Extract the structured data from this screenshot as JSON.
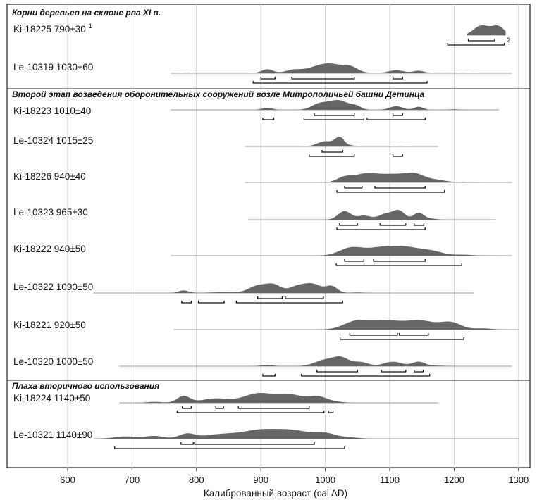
{
  "chart_data": {
    "type": "area",
    "title": "",
    "xlabel": "Калиброванный возраст (cal AD)",
    "ylabel": "",
    "xlim": [
      505,
      1305
    ],
    "xticks": [
      600,
      700,
      800,
      900,
      1000,
      1100,
      1200,
      1300
    ],
    "grid": true,
    "sections": [
      {
        "title": "Корни деревьев на склоне рва XI в.",
        "row": 0
      },
      {
        "title": "Второй этап возведения оборонительных сооружений возле Митрополичьей башни Детинца",
        "row": 2
      },
      {
        "title": "Плаха вторичного использования",
        "row": 10
      }
    ],
    "samples": [
      {
        "label": "Ki-18225 790±30",
        "note": "1",
        "note2": "2",
        "range": [
          1220,
          1280
        ],
        "peaks": [
          [
            1238,
            0.75,
            10
          ],
          [
            1255,
            1.0,
            15
          ],
          [
            1270,
            0.7,
            8
          ]
        ],
        "sigma1": [
          [
            1222,
            1263
          ]
        ],
        "sigma2": [
          [
            1190,
            1278
          ]
        ]
      },
      {
        "label": "Le-10319 1030±60",
        "range": [
          760,
          1290
        ],
        "peaks": [
          [
            785,
            0.06,
            6
          ],
          [
            910,
            0.4,
            9
          ],
          [
            950,
            0.28,
            12
          ],
          [
            1005,
            1.0,
            26
          ],
          [
            1040,
            0.35,
            10
          ],
          [
            1110,
            0.3,
            12
          ],
          [
            1145,
            0.25,
            9
          ],
          [
            1215,
            0.05,
            10
          ]
        ],
        "sigma1": [
          [
            900,
            922
          ],
          [
            948,
            1045
          ],
          [
            1105,
            1120
          ]
        ],
        "sigma2": [
          [
            888,
            1158
          ]
        ]
      },
      {
        "label": "Ki-18223 1010±40",
        "range": [
          760,
          1270
        ],
        "peaks": [
          [
            910,
            0.22,
            8
          ],
          [
            990,
            0.55,
            12
          ],
          [
            1020,
            1.0,
            16
          ],
          [
            1048,
            0.3,
            8
          ],
          [
            1110,
            0.38,
            10
          ],
          [
            1145,
            0.32,
            7
          ],
          [
            1200,
            0.05,
            10
          ]
        ],
        "sigma1": [
          [
            983,
            1045
          ],
          [
            1105,
            1120
          ]
        ],
        "sigma2": [
          [
            903,
            920
          ],
          [
            967,
            1060
          ],
          [
            1065,
            1155
          ]
        ]
      },
      {
        "label": "Le-10324 1015±25",
        "range": [
          875,
          1175
        ],
        "peaks": [
          [
            1000,
            0.75,
            12
          ],
          [
            1018,
            0.6,
            6
          ],
          [
            1025,
            0.9,
            6
          ],
          [
            1040,
            0.15,
            6
          ],
          [
            1115,
            0.06,
            8
          ]
        ],
        "sigma1": [
          [
            995,
            1027
          ]
        ],
        "sigma2": [
          [
            975,
            1045
          ],
          [
            1105,
            1120
          ]
        ]
      },
      {
        "label": "Ki-18226 940±40",
        "range": [
          875,
          1290
        ],
        "peaks": [
          [
            1030,
            0.6,
            12
          ],
          [
            1060,
            0.75,
            16
          ],
          [
            1100,
            0.95,
            26
          ],
          [
            1140,
            0.8,
            16
          ],
          [
            1175,
            0.25,
            14
          ],
          [
            1215,
            0.05,
            12
          ]
        ],
        "sigma1": [
          [
            1030,
            1057
          ],
          [
            1077,
            1155
          ]
        ],
        "sigma2": [
          [
            1018,
            1185
          ]
        ]
      },
      {
        "label": "Le-10323 965±30",
        "range": [
          880,
          1265
        ],
        "peaks": [
          [
            1030,
            0.85,
            10
          ],
          [
            1060,
            0.4,
            10
          ],
          [
            1095,
            0.6,
            12
          ],
          [
            1115,
            0.8,
            9
          ],
          [
            1145,
            0.7,
            8
          ],
          [
            1165,
            0.1,
            8
          ]
        ],
        "sigma1": [
          [
            1022,
            1050
          ],
          [
            1085,
            1125
          ],
          [
            1138,
            1153
          ]
        ],
        "sigma2": [
          [
            1018,
            1155
          ]
        ]
      },
      {
        "label": "Ki-18222 940±50",
        "range": [
          760,
          1290
        ],
        "peaks": [
          [
            1040,
            0.85,
            18
          ],
          [
            1085,
            0.8,
            22
          ],
          [
            1125,
            0.85,
            22
          ],
          [
            1165,
            0.45,
            18
          ],
          [
            1215,
            0.1,
            14
          ],
          [
            1250,
            0.02,
            10
          ]
        ],
        "sigma1": [
          [
            1030,
            1060
          ],
          [
            1075,
            1155
          ]
        ],
        "sigma2": [
          [
            1017,
            1212
          ]
        ]
      },
      {
        "label": "Le-10322 1090±50",
        "range": [
          640,
          1230
        ],
        "peaks": [
          [
            780,
            0.2,
            8
          ],
          [
            840,
            0.06,
            20
          ],
          [
            895,
            0.55,
            14
          ],
          [
            920,
            0.6,
            12
          ],
          [
            955,
            0.45,
            12
          ],
          [
            980,
            0.7,
            14
          ],
          [
            1010,
            0.5,
            9
          ],
          [
            1050,
            0.04,
            10
          ]
        ],
        "sigma1": [
          [
            895,
            933
          ],
          [
            938,
            997
          ]
        ],
        "sigma2": [
          [
            777,
            792
          ],
          [
            803,
            843
          ],
          [
            862,
            1027
          ]
        ]
      },
      {
        "label": "Ki-18221 920±50",
        "range": [
          765,
          1300
        ],
        "peaks": [
          [
            1045,
            0.6,
            18
          ],
          [
            1090,
            0.95,
            30
          ],
          [
            1150,
            0.8,
            22
          ],
          [
            1195,
            0.7,
            16
          ],
          [
            1245,
            0.12,
            14
          ]
        ],
        "sigma1": [
          [
            1038,
            1112
          ],
          [
            1115,
            1160
          ]
        ],
        "sigma2": [
          [
            1023,
            1215
          ]
        ]
      },
      {
        "label": "Le-10320 1000±50",
        "range": [
          680,
          1290
        ],
        "peaks": [
          [
            910,
            0.15,
            9
          ],
          [
            1000,
            0.7,
            16
          ],
          [
            1025,
            0.85,
            12
          ],
          [
            1055,
            0.45,
            12
          ],
          [
            1105,
            0.5,
            14
          ],
          [
            1145,
            0.5,
            10
          ],
          [
            1175,
            0.06,
            12
          ]
        ],
        "sigma1": [
          [
            987,
            1050
          ],
          [
            1087,
            1125
          ],
          [
            1138,
            1152
          ]
        ],
        "sigma2": [
          [
            903,
            922
          ],
          [
            963,
            1162
          ]
        ]
      },
      {
        "label": "Ki-18224 1140±50",
        "range": [
          680,
          1175
        ],
        "peaks": [
          [
            735,
            0.1,
            12
          ],
          [
            780,
            0.7,
            10
          ],
          [
            830,
            0.45,
            22
          ],
          [
            895,
            0.95,
            22
          ],
          [
            945,
            0.85,
            22
          ],
          [
            990,
            0.6,
            14
          ],
          [
            1020,
            0.08,
            10
          ]
        ],
        "sigma1": [
          [
            778,
            792
          ],
          [
            830,
            842
          ],
          [
            865,
            975
          ]
        ],
        "sigma2": [
          [
            770,
            998
          ],
          [
            1005,
            1012
          ]
        ]
      },
      {
        "label": "Le-10321 1140±90",
        "range": [
          640,
          1300
        ],
        "peaks": [
          [
            690,
            0.25,
            18
          ],
          [
            735,
            0.3,
            14
          ],
          [
            785,
            0.5,
            12
          ],
          [
            840,
            0.5,
            30
          ],
          [
            900,
            0.85,
            26
          ],
          [
            950,
            0.85,
            26
          ],
          [
            1000,
            0.55,
            18
          ],
          [
            1040,
            0.12,
            14
          ]
        ],
        "sigma1": [
          [
            776,
            795
          ],
          [
            797,
            983
          ]
        ],
        "sigma2": [
          [
            673,
            1030
          ]
        ]
      }
    ]
  }
}
